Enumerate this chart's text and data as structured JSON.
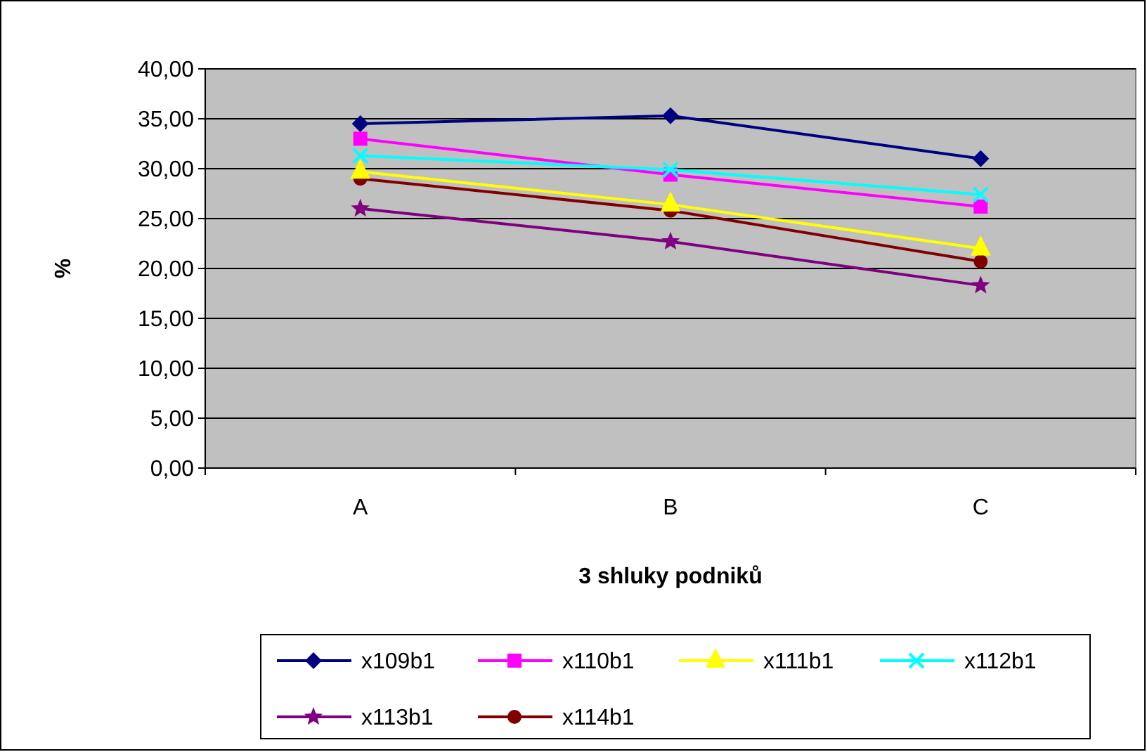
{
  "chart_data": {
    "type": "line",
    "xlabel": "3 shluky podniků",
    "ylabel": "%",
    "categories": [
      "A",
      "B",
      "C"
    ],
    "series": [
      {
        "name": "x109b1",
        "color": "#000080",
        "marker": "diamond",
        "values": [
          34.5,
          35.3,
          31.0
        ]
      },
      {
        "name": "x110b1",
        "color": "#ff00ff",
        "marker": "square",
        "values": [
          33.0,
          29.4,
          26.2
        ]
      },
      {
        "name": "x111b1",
        "color": "#ffff00",
        "marker": "triangle",
        "values": [
          29.7,
          26.4,
          22.0
        ]
      },
      {
        "name": "x112b1",
        "color": "#00ffff",
        "marker": "cross",
        "values": [
          31.3,
          29.9,
          27.4
        ]
      },
      {
        "name": "x113b1",
        "color": "#800080",
        "marker": "star",
        "values": [
          26.0,
          22.7,
          18.3
        ]
      },
      {
        "name": "x114b1",
        "color": "#800000",
        "marker": "circle",
        "values": [
          29.0,
          25.8,
          20.7
        ]
      }
    ],
    "ylim": [
      0,
      40
    ],
    "yticks": [
      {
        "value": 0,
        "label": "0,00"
      },
      {
        "value": 5,
        "label": "5,00"
      },
      {
        "value": 10,
        "label": "10,00"
      },
      {
        "value": 15,
        "label": "15,00"
      },
      {
        "value": 20,
        "label": "20,00"
      },
      {
        "value": 25,
        "label": "25,00"
      },
      {
        "value": 30,
        "label": "30,00"
      },
      {
        "value": 35,
        "label": "35,00"
      },
      {
        "value": 40,
        "label": "40,00"
      }
    ],
    "grid": "y",
    "legend": "bottom",
    "line_style": "solid"
  }
}
